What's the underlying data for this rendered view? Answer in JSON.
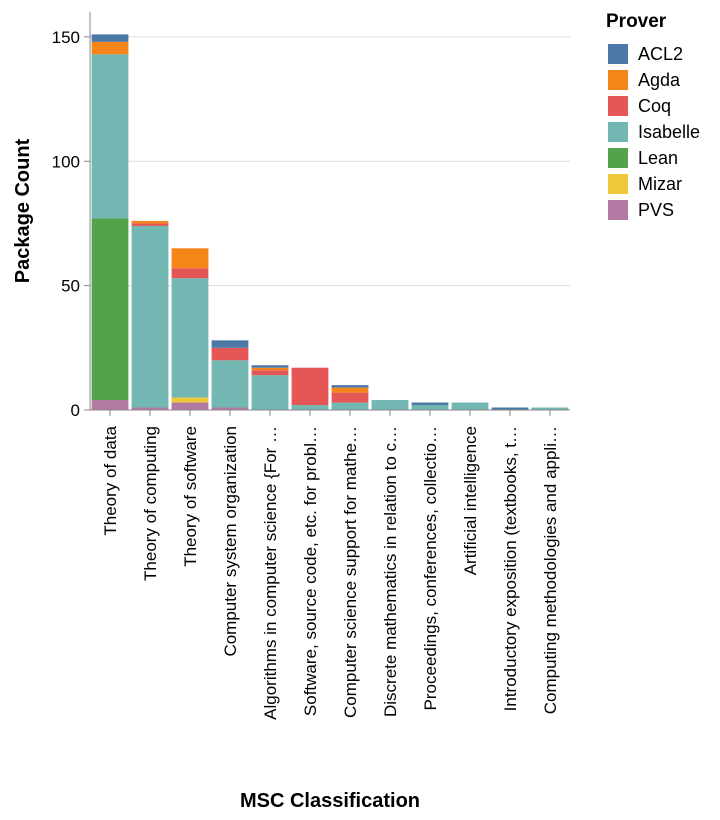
{
  "chart_data": {
    "type": "bar",
    "stacked": true,
    "xlabel": "MSC Classification",
    "ylabel": "Package Count",
    "ylim": [
      0,
      160
    ],
    "yticks": [
      0,
      50,
      100,
      150
    ],
    "grid": true,
    "legend_title": "Prover",
    "legend_position": "right",
    "categories": [
      "Theory of data",
      "Theory of computing",
      "Theory of software",
      "Computer system organization",
      "Algorithms in computer science {For …",
      "Software, source code, etc. for probl…",
      "Computer science support for mathe…",
      "Discrete mathematics in relation to c…",
      "Proceedings, conferences, collectio…",
      "Artificial intelligence",
      "Introductory exposition (textbooks, t…",
      "Computing methodologies and appli…"
    ],
    "series": [
      {
        "name": "PVS",
        "color": "#b279a2",
        "values": [
          4,
          1,
          3,
          1,
          0,
          0,
          0,
          0,
          0,
          0,
          0,
          0
        ]
      },
      {
        "name": "Mizar",
        "color": "#eeca3b",
        "values": [
          0,
          0,
          2,
          0,
          0,
          0,
          0,
          0,
          0,
          0,
          0,
          0
        ]
      },
      {
        "name": "Lean",
        "color": "#54a24b",
        "values": [
          73,
          0,
          0,
          0,
          0,
          0,
          0,
          0,
          0,
          0,
          0,
          0
        ]
      },
      {
        "name": "Isabelle",
        "color": "#72b7b2",
        "values": [
          66,
          73,
          48,
          19,
          14,
          2,
          3,
          4,
          2,
          3,
          0,
          1
        ]
      },
      {
        "name": "Coq",
        "color": "#e45756",
        "values": [
          0,
          1,
          4,
          5,
          2,
          15,
          4,
          0,
          0,
          0,
          0,
          0
        ]
      },
      {
        "name": "Agda",
        "color": "#f58518",
        "values": [
          5,
          1,
          8,
          0,
          1,
          0,
          2,
          0,
          0,
          0,
          0,
          0
        ]
      },
      {
        "name": "ACL2",
        "color": "#4c78a8",
        "values": [
          3,
          0,
          0,
          3,
          1,
          0,
          1,
          0,
          1,
          0,
          1,
          0
        ]
      }
    ],
    "legend_order": [
      "ACL2",
      "Agda",
      "Coq",
      "Isabelle",
      "Lean",
      "Mizar",
      "PVS"
    ]
  }
}
